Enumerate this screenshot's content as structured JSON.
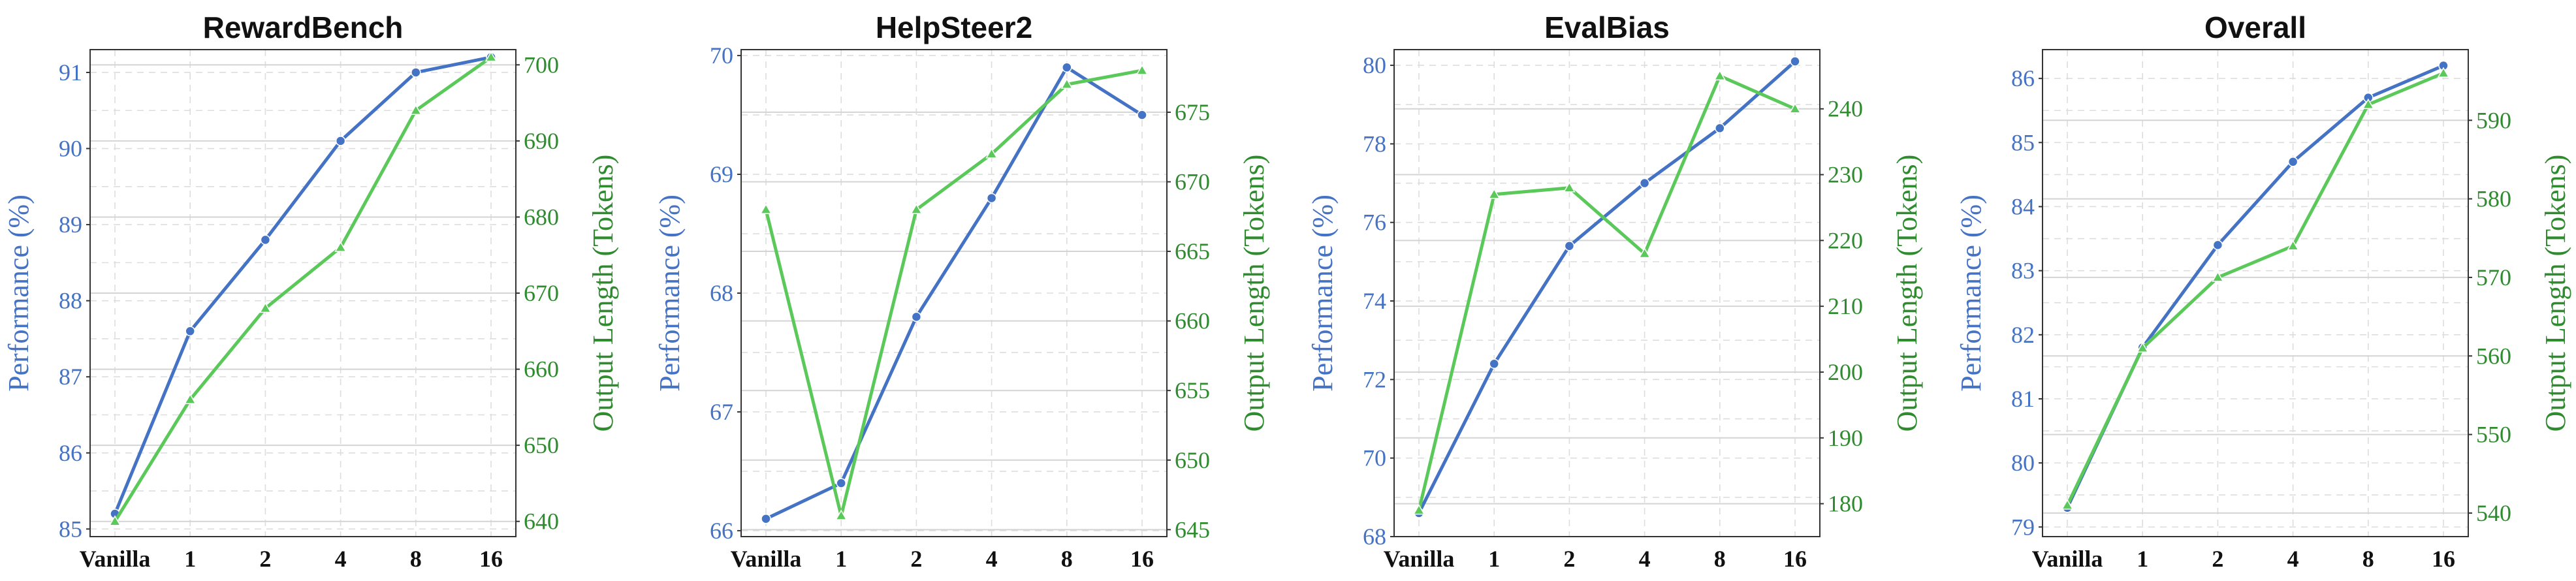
{
  "colors": {
    "performance": "#4472c4",
    "output_length": "#5ac95a",
    "right_axis_text": "#2e8b2e"
  },
  "chart_data": [
    {
      "type": "line",
      "title": "RewardBench",
      "categories": [
        "Vanilla",
        "1",
        "2",
        "4",
        "8",
        "16"
      ],
      "ylabel": "Performance (%)",
      "y2label": "Output Length (Tokens)",
      "ylim": [
        84.9,
        91.3
      ],
      "yticks": [
        85,
        86,
        87,
        88,
        89,
        90,
        91
      ],
      "y2lim": [
        638,
        702
      ],
      "y2ticks": [
        640,
        650,
        660,
        670,
        680,
        690,
        700
      ],
      "series": [
        {
          "axis": "left",
          "values": [
            85.2,
            87.6,
            88.8,
            90.1,
            91.0,
            91.2
          ]
        },
        {
          "axis": "right",
          "values": [
            640,
            656,
            668,
            676,
            694,
            701
          ]
        }
      ]
    },
    {
      "type": "line",
      "title": "HelpSteer2",
      "categories": [
        "Vanilla",
        "1",
        "2",
        "4",
        "8",
        "16"
      ],
      "ylabel": "Performance (%)",
      "y2label": "Output Length (Tokens)",
      "ylim": [
        65.95,
        70.05
      ],
      "yticks": [
        66,
        67,
        68,
        69,
        70
      ],
      "y2lim": [
        644.5,
        679.5
      ],
      "y2ticks": [
        645,
        650,
        655,
        660,
        665,
        670,
        675
      ],
      "series": [
        {
          "axis": "left",
          "values": [
            66.1,
            66.4,
            67.8,
            68.8,
            69.9,
            69.5
          ]
        },
        {
          "axis": "right",
          "values": [
            668,
            646,
            668,
            672,
            677,
            678
          ]
        }
      ]
    },
    {
      "type": "line",
      "title": "EvalBias",
      "categories": [
        "Vanilla",
        "1",
        "2",
        "4",
        "8",
        "16"
      ],
      "ylabel": "Performance (%)",
      "y2label": "Output Length (Tokens)",
      "ylim": [
        68.0,
        80.4
      ],
      "yticks": [
        68,
        70,
        72,
        74,
        76,
        78,
        80
      ],
      "y2lim": [
        175,
        249
      ],
      "y2ticks": [
        180,
        190,
        200,
        210,
        220,
        230,
        240
      ],
      "series": [
        {
          "axis": "left",
          "values": [
            68.6,
            72.4,
            75.4,
            77.0,
            78.4,
            80.1
          ]
        },
        {
          "axis": "right",
          "values": [
            179,
            227,
            228,
            218,
            245,
            240
          ]
        }
      ]
    },
    {
      "type": "line",
      "title": "Overall",
      "categories": [
        "Vanilla",
        "1",
        "2",
        "4",
        "8",
        "16"
      ],
      "ylabel": "Performance (%)",
      "y2label": "Output Length (Tokens)",
      "ylim": [
        78.85,
        86.45
      ],
      "yticks": [
        79,
        80,
        81,
        82,
        83,
        84,
        85,
        86
      ],
      "y2lim": [
        537,
        599
      ],
      "y2ticks": [
        540,
        550,
        560,
        570,
        580,
        590
      ],
      "series": [
        {
          "axis": "left",
          "values": [
            79.3,
            81.8,
            83.4,
            84.7,
            85.7,
            86.2
          ]
        },
        {
          "axis": "right",
          "values": [
            541,
            561,
            570,
            574,
            592,
            596
          ]
        }
      ]
    }
  ]
}
